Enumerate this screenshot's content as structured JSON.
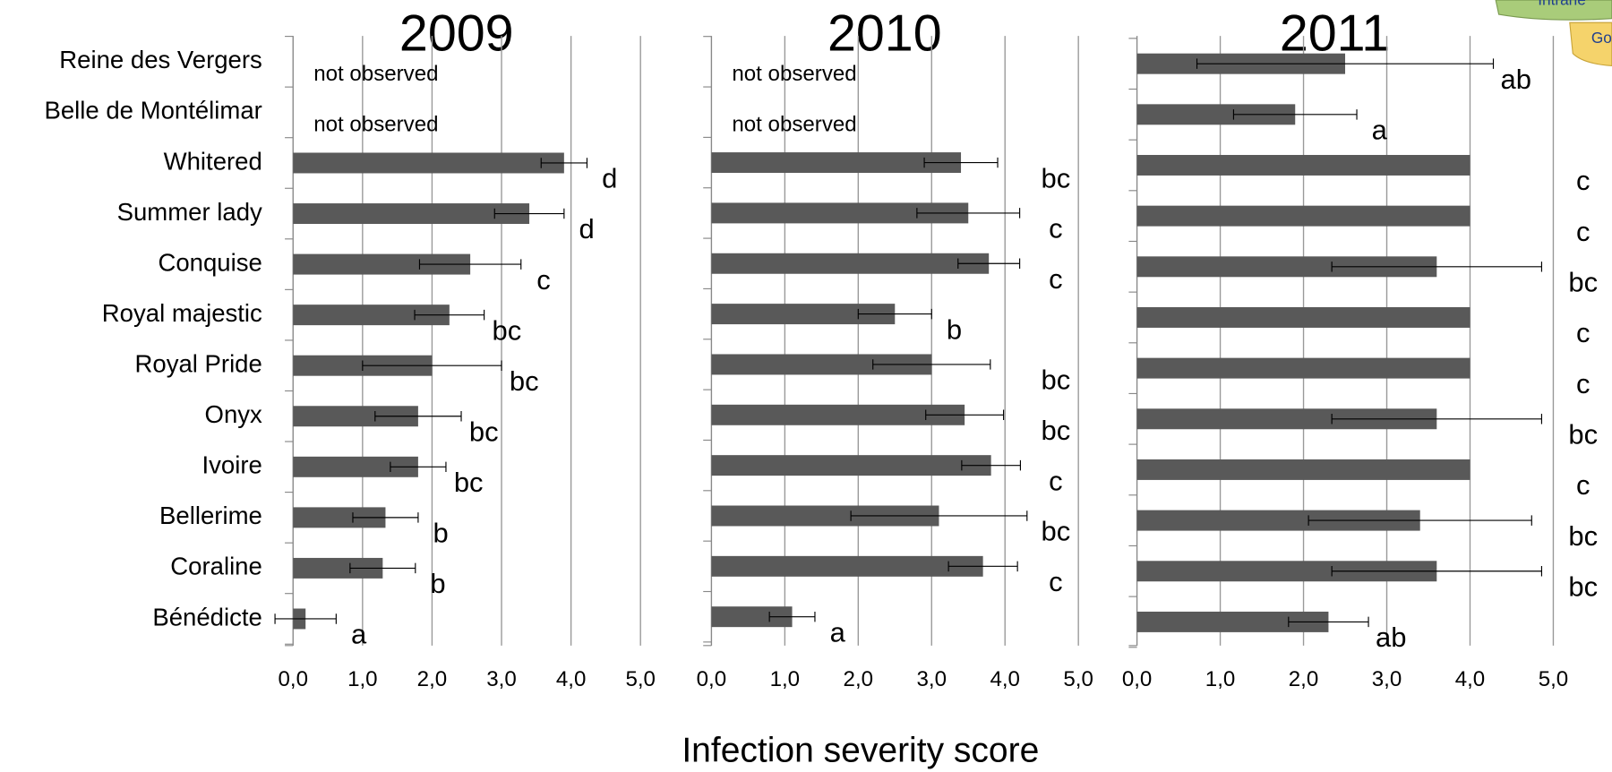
{
  "categories": [
    "Reine des Vergers",
    "Belle de Montélimar",
    "Whitered",
    "Summer lady",
    "Conquise",
    "Royal majestic",
    "Royal Pride",
    "Onyx",
    "Ivoire",
    "Bellerime",
    "Coraline",
    "Bénédicte"
  ],
  "xlabel": "Infection severity score",
  "corner_tabs": [
    "Intrane",
    "Go"
  ],
  "chart_data": [
    {
      "type": "bar",
      "title": "2009",
      "color": "#595959",
      "xlim": [
        0,
        5
      ],
      "xticks": [
        {
          "value": 0,
          "label": "0,0"
        },
        {
          "value": 1,
          "label": "1,0"
        },
        {
          "value": 2,
          "label": "2,0"
        },
        {
          "value": 3,
          "label": "3,0"
        },
        {
          "value": 4,
          "label": "4,0"
        },
        {
          "value": 5,
          "label": "5,0"
        }
      ],
      "values": [
        null,
        null,
        3.9,
        3.4,
        2.55,
        2.25,
        2.0,
        1.8,
        1.8,
        1.33,
        1.29,
        0.18
      ],
      "errors": [
        null,
        null,
        0.33,
        0.5,
        0.73,
        0.5,
        1.0,
        0.62,
        0.4,
        0.47,
        0.47,
        0.44
      ],
      "notes": [
        "not observed",
        "not observed",
        null,
        null,
        null,
        null,
        null,
        null,
        null,
        null,
        null,
        null
      ],
      "letters": [
        null,
        null,
        "d",
        "d",
        "c",
        "bc",
        "bc",
        "bc",
        "bc",
        "b",
        "b",
        "a"
      ]
    },
    {
      "type": "bar",
      "title": "2010",
      "color": "#595959",
      "xlim": [
        0,
        5
      ],
      "xticks": [
        {
          "value": 0,
          "label": "0,0"
        },
        {
          "value": 1,
          "label": "1,0"
        },
        {
          "value": 2,
          "label": "2,0"
        },
        {
          "value": 3,
          "label": "3,0"
        },
        {
          "value": 4,
          "label": "4,0"
        },
        {
          "value": 5,
          "label": "5,0"
        }
      ],
      "values": [
        null,
        null,
        3.4,
        3.5,
        3.78,
        2.5,
        3.0,
        3.45,
        3.81,
        3.1,
        3.7,
        1.1
      ],
      "errors": [
        null,
        null,
        0.5,
        0.7,
        0.42,
        0.5,
        0.8,
        0.53,
        0.4,
        1.2,
        0.47,
        0.31
      ],
      "notes": [
        "not observed",
        "not observed",
        null,
        null,
        null,
        null,
        null,
        null,
        null,
        null,
        null,
        null
      ],
      "letters": [
        null,
        null,
        "bc",
        "c",
        "c",
        "b",
        "bc",
        "bc",
        "c",
        "bc",
        "c",
        "a"
      ]
    },
    {
      "type": "bar",
      "title": "2011",
      "color": "#595959",
      "xlim": [
        0,
        5
      ],
      "xticks": [
        {
          "value": 0,
          "label": "0,0"
        },
        {
          "value": 1,
          "label": "1,0"
        },
        {
          "value": 2,
          "label": "2,0"
        },
        {
          "value": 3,
          "label": "3,0"
        },
        {
          "value": 4,
          "label": "4,0"
        },
        {
          "value": 5,
          "label": "5,0"
        }
      ],
      "values": [
        2.5,
        1.9,
        4.0,
        4.0,
        3.6,
        4.0,
        4.0,
        3.6,
        4.0,
        3.4,
        3.6,
        2.3
      ],
      "errors": [
        1.78,
        0.74,
        null,
        null,
        1.26,
        null,
        null,
        1.26,
        null,
        1.34,
        1.26,
        0.48
      ],
      "notes": [
        null,
        null,
        null,
        null,
        null,
        null,
        null,
        null,
        null,
        null,
        null,
        null
      ],
      "letters": [
        "ab",
        "a",
        "c",
        "c",
        "bc",
        "c",
        "c",
        "bc",
        "c",
        "bc",
        "bc",
        "ab"
      ]
    }
  ]
}
